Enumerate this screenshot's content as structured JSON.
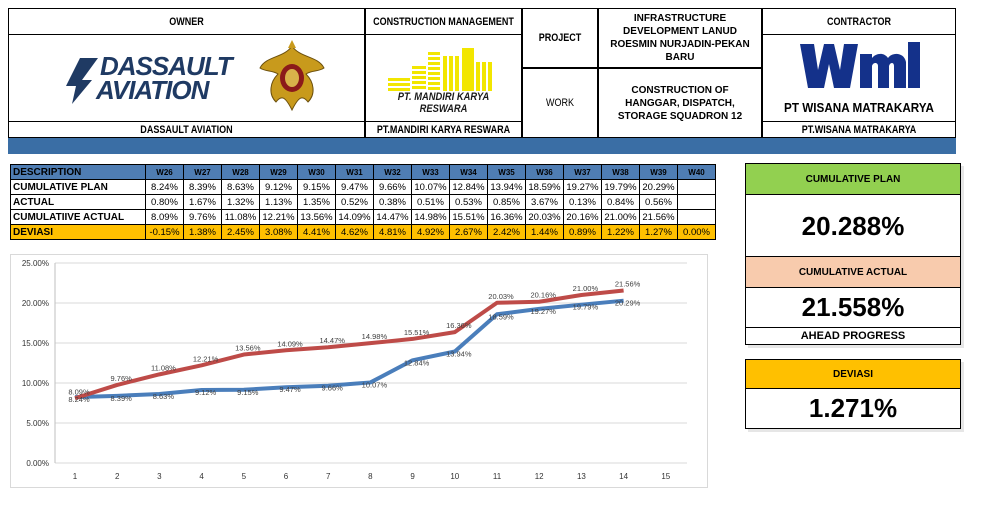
{
  "header": {
    "owner_label": "OWNER",
    "owner_name": "DASSAULT AVIATION",
    "owner_logo_line1": "DASSAULT",
    "owner_logo_line2": "AVIATION",
    "cm_label": "CONSTRUCTION MANAGEMENT",
    "cm_logo_text": "PT. MANDIRI KARYA RESWARA",
    "cm_name": "PT.MANDIRI KARYA RESWARA",
    "project_label": "PROJECT",
    "project_value": "INFRASTRUCTURE DEVELOPMENT LANUD ROESMIN NURJADIN-PEKAN BARU",
    "work_label": "WORK",
    "work_value": "CONSTRUCTION OF HANGGAR, DISPATCH, STORAGE SQUADRON 12",
    "contractor_label": "CONTRACTOR",
    "contractor_logo_text": "PT WISANA MATRAKARYA",
    "contractor_name": "PT.WISANA MATRAKARYA"
  },
  "table": {
    "description_header": "DESCRIPTION",
    "weeks": [
      "W26",
      "W27",
      "W28",
      "W29",
      "W30",
      "W31",
      "W32",
      "W33",
      "W34",
      "W35",
      "W36",
      "W37",
      "W38",
      "W39",
      "W40"
    ],
    "rows": [
      {
        "label": "CUMULATIVE PLAN",
        "values": [
          "8.24%",
          "8.39%",
          "8.63%",
          "9.12%",
          "9.15%",
          "9.47%",
          "9.66%",
          "10.07%",
          "12.84%",
          "13.94%",
          "18.59%",
          "19.27%",
          "19.79%",
          "20.29%",
          ""
        ]
      },
      {
        "label": "ACTUAL",
        "values": [
          "0.80%",
          "1.67%",
          "1.32%",
          "1.13%",
          "1.35%",
          "0.52%",
          "0.38%",
          "0.51%",
          "0.53%",
          "0.85%",
          "3.67%",
          "0.13%",
          "0.84%",
          "0.56%",
          ""
        ]
      },
      {
        "label": "CUMULATIIVE ACTUAL",
        "values": [
          "8.09%",
          "9.76%",
          "11.08%",
          "12.21%",
          "13.56%",
          "14.09%",
          "14.47%",
          "14.98%",
          "15.51%",
          "16.36%",
          "20.03%",
          "20.16%",
          "21.00%",
          "21.56%",
          ""
        ]
      },
      {
        "label": "DEVIASI",
        "values": [
          "-0.15%",
          "1.38%",
          "2.45%",
          "3.08%",
          "4.41%",
          "4.62%",
          "4.81%",
          "4.92%",
          "2.67%",
          "2.42%",
          "1.44%",
          "0.89%",
          "1.22%",
          "1.27%",
          "0.00%"
        ]
      }
    ]
  },
  "summary": {
    "plan_title": "CUMULATIVE PLAN",
    "plan_value": "20.288%",
    "actual_title": "CUMULATIVE ACTUAL",
    "actual_value": "21.558%",
    "actual_note": "AHEAD PROGRESS",
    "deviasi_title": "DEVIASI",
    "deviasi_value": "1.271%"
  },
  "colors": {
    "plan_green": "#92d050",
    "actual_salmon": "#f8cbad",
    "deviasi_orange": "#ffc000",
    "header_blue": "#4f7db3",
    "plan_line": "#4a7ebb",
    "actual_line": "#be4b48"
  },
  "chart_data": {
    "type": "line",
    "x": [
      1,
      2,
      3,
      4,
      5,
      6,
      7,
      8,
      9,
      10,
      11,
      12,
      13,
      14
    ],
    "x_ticks": [
      "1",
      "2",
      "3",
      "4",
      "5",
      "6",
      "7",
      "8",
      "9",
      "10",
      "11",
      "12",
      "13",
      "14",
      "15"
    ],
    "y_ticks": [
      "0.00%",
      "5.00%",
      "10.00%",
      "15.00%",
      "20.00%",
      "25.00%"
    ],
    "ylim": [
      0,
      25
    ],
    "xlim": [
      1,
      15
    ],
    "grid": "horizontal",
    "series": [
      {
        "key": "plan",
        "values": [
          8.24,
          8.39,
          8.63,
          9.12,
          9.15,
          9.47,
          9.66,
          10.07,
          12.84,
          13.94,
          18.59,
          19.27,
          19.79,
          20.29
        ],
        "labels": [
          "8.24%",
          "8.39%",
          "8.63%",
          "9.12%",
          "9.15%",
          "9.47%",
          "9.66%",
          "10.07%",
          "12.84%",
          "13.94%",
          "18.59%",
          "19.27%",
          "19.79%",
          "20.29%"
        ]
      },
      {
        "key": "actual",
        "values": [
          8.09,
          9.76,
          11.08,
          12.21,
          13.56,
          14.09,
          14.47,
          14.98,
          15.51,
          16.36,
          20.03,
          20.16,
          21.0,
          21.56
        ],
        "labels": [
          "8.09%",
          "9.76%",
          "11.08%",
          "12.21%",
          "13.56%",
          "14.09%",
          "14.47%",
          "14.98%",
          "15.51%",
          "16.36%",
          "20.03%",
          "20.16%",
          "21.00%",
          "21.56%"
        ]
      }
    ]
  }
}
